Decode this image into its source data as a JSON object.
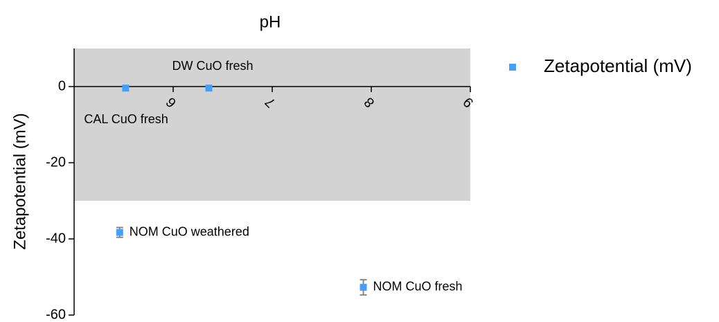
{
  "chart_data": {
    "type": "scatter",
    "x_label": "pH",
    "y_label": "Zetapotential (mV)",
    "xlim": [
      5,
      9
    ],
    "xticks": [
      6,
      7,
      8,
      9
    ],
    "ylim": [
      -60,
      10
    ],
    "yticks": [
      -60,
      -40,
      -20,
      0
    ],
    "band": {
      "ylim": [
        -30,
        10
      ],
      "color": "#d3d3d3"
    },
    "legend": "top-right",
    "series": [
      {
        "name": "Zetapotential (mV)",
        "color": "#4a9ff5",
        "x": [
          5.52,
          6.36,
          5.46,
          7.92
        ],
        "values": [
          -0.4,
          -0.4,
          -38.3,
          -52.7
        ],
        "errors": [
          null,
          null,
          1.3,
          2
        ],
        "labels": [
          "CAL CuO fresh",
          "DW CuO fresh",
          "NOM CuO weathered",
          "NOM CuO fresh"
        ]
      }
    ]
  }
}
